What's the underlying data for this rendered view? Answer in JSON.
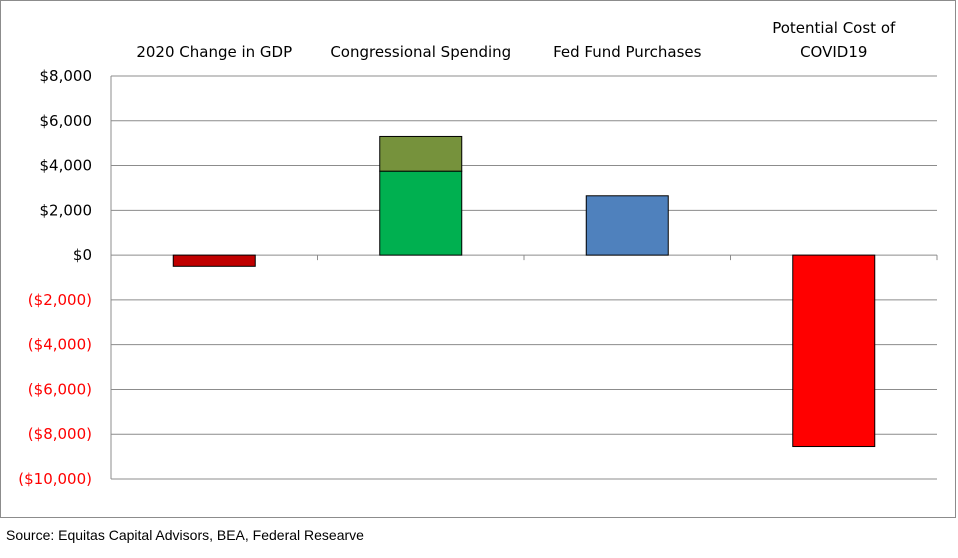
{
  "chart_data": {
    "type": "bar",
    "stacked": true,
    "categories": [
      "2020 Change in GDP",
      "Congressional Spending",
      "Fed Fund Purchases",
      "Potential Cost of COVID19"
    ],
    "series": [
      {
        "values": [
          -500,
          3750,
          2650,
          -8550
        ],
        "colors": [
          "#c00000",
          "#00b050",
          "#4f81bd",
          "#ff0000"
        ]
      },
      {
        "values": [
          0,
          1550,
          0,
          0
        ],
        "colors": [
          "#76923c",
          "#76923c",
          "#76923c",
          "#76923c"
        ]
      }
    ],
    "ylim": [
      -10000,
      8000
    ],
    "ytick_step": 2000,
    "yticks": [
      "$8,000",
      "$6,000",
      "$4,000",
      "$2,000",
      "$0",
      "($2,000)",
      "($4,000)",
      "($6,000)",
      "($8,000)",
      "($10,000)"
    ],
    "negative_tick_color": "#ff0000",
    "gridlines": true,
    "category_labels_position": "top",
    "xlabel": "",
    "ylabel": ""
  },
  "source": "Source: Equitas Capital Advisors, BEA, Federal Researve"
}
